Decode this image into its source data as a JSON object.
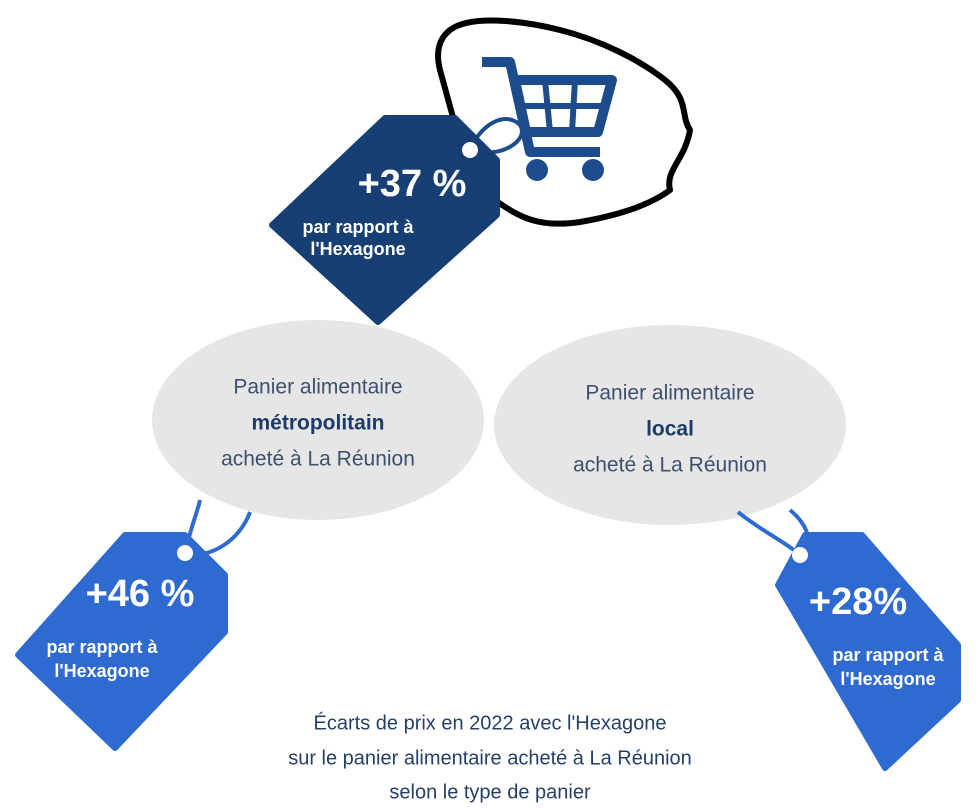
{
  "top_tag": {
    "value": "+37 %",
    "label_lines": [
      "par rapport à",
      "l'Hexagone"
    ]
  },
  "baskets": [
    {
      "lines": [
        "Panier alimentaire",
        "métropolitain",
        "acheté à La Réunion"
      ],
      "tag": {
        "value": "+46 %",
        "label_lines": [
          "par rapport à",
          "l'Hexagone"
        ]
      }
    },
    {
      "lines": [
        "Panier alimentaire",
        "local",
        "acheté à La Réunion"
      ],
      "tag": {
        "value": "+28%",
        "label_lines": [
          "par rapport à",
          "l'Hexagone"
        ]
      }
    }
  ],
  "caption": [
    "Écarts de prix en 2022 avec l'Hexagone",
    "sur le panier alimentaire acheté à La Réunion",
    "selon le type de panier"
  ]
}
